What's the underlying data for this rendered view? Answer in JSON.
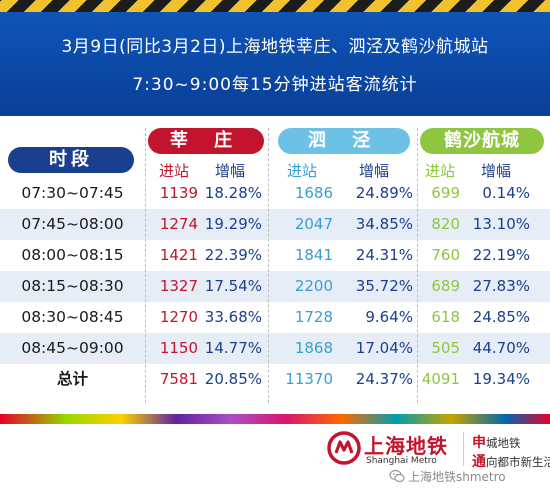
{
  "banner": {
    "line1": "3月9日(同比3月2日)上海地铁莘庄、泗泾及鹤沙航城站",
    "line2": "7:30~9:00每15分钟进站客流统计"
  },
  "chart_data": {
    "type": "table",
    "time_header": "时段",
    "sub_headers": {
      "entries": "进站",
      "growth": "增幅"
    },
    "stations": [
      {
        "name": "莘 庄",
        "color": "#c2152d"
      },
      {
        "name": "泗 泾",
        "color": "#6ec1e6"
      },
      {
        "name": "鹤沙航城",
        "color": "#8ec63f"
      }
    ],
    "rows": [
      {
        "time": "07:30~07:45",
        "values": [
          [
            "1139",
            "18.28%"
          ],
          [
            "1686",
            "24.89%"
          ],
          [
            "699",
            "0.14%"
          ]
        ]
      },
      {
        "time": "07:45~08:00",
        "values": [
          [
            "1274",
            "19.29%"
          ],
          [
            "2047",
            "34.85%"
          ],
          [
            "820",
            "13.10%"
          ]
        ]
      },
      {
        "time": "08:00~08:15",
        "values": [
          [
            "1421",
            "22.39%"
          ],
          [
            "1841",
            "24.31%"
          ],
          [
            "760",
            "22.19%"
          ]
        ]
      },
      {
        "time": "08:15~08:30",
        "values": [
          [
            "1327",
            "17.54%"
          ],
          [
            "2200",
            "35.72%"
          ],
          [
            "689",
            "27.83%"
          ]
        ]
      },
      {
        "time": "08:30~08:45",
        "values": [
          [
            "1270",
            "33.68%"
          ],
          [
            "1728",
            "9.64%"
          ],
          [
            "618",
            "24.85%"
          ]
        ]
      },
      {
        "time": "08:45~09:00",
        "values": [
          [
            "1150",
            "14.77%"
          ],
          [
            "1868",
            "17.04%"
          ],
          [
            "505",
            "44.70%"
          ]
        ]
      }
    ],
    "total": {
      "label": "总计",
      "values": [
        [
          "7581",
          "20.85%"
        ],
        [
          "11370",
          "24.37%"
        ],
        [
          "4091",
          "19.34%"
        ]
      ]
    }
  },
  "colors": {
    "banner": "#0a3f98",
    "time_pill": "#1b3f8f",
    "row_shade": "#e6edf7",
    "entries_text": [
      "#c2152d",
      "#3a9fd0",
      "#8ec63f"
    ],
    "growth_text": "#1b3f8f"
  },
  "footer": {
    "logo_text": "上海地铁",
    "logo_sub": "Shanghai Metro",
    "slogan_line1_red": "申",
    "slogan_line1_rest": "城地铁",
    "slogan_line2_red": "通",
    "slogan_line2_rest": "向都市新生活",
    "watermark": "上海地铁shmetro"
  }
}
